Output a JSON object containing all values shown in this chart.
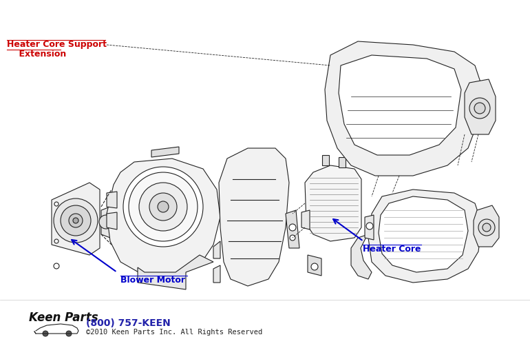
{
  "background_color": "#ffffff",
  "label_heater_core_support_line1": "Heater Core Support",
  "label_heater_core_support_line2": "    Extension",
  "label_blower_motor": "Blower Motor",
  "label_heater_core": "Heater Core",
  "label_color_red": "#cc0000",
  "label_color_blue": "#0000cc",
  "arrow_color": "#0000cc",
  "line_color": "#222222",
  "phone_text": "(800) 757-KEEN",
  "copyright_text": "©2010 Keen Parts Inc. All Rights Reserved",
  "phone_color": "#2222aa",
  "copyright_color": "#222222",
  "fig_width": 7.7,
  "fig_height": 5.18,
  "dpi": 100
}
